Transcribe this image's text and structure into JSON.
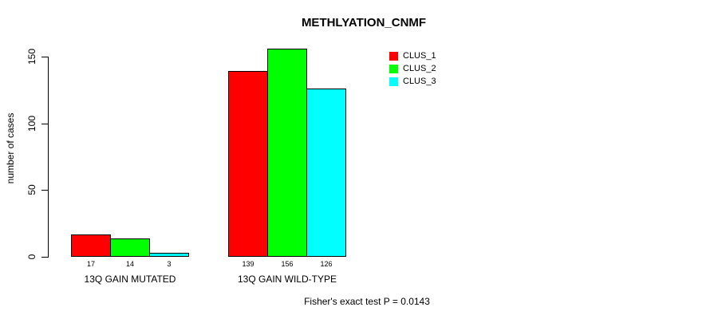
{
  "title": "METHLYATION_CNMF",
  "footnote": "Fisher's exact test P = 0.0143",
  "chart_data": {
    "type": "bar",
    "title": "METHLYATION_CNMF",
    "xlabel": "",
    "ylabel": "number of cases",
    "categories": [
      "13Q GAIN MUTATED",
      "13Q GAIN WILD-TYPE"
    ],
    "series": [
      {
        "name": "CLUS_1",
        "color": "#FF0000",
        "values": [
          17,
          139
        ]
      },
      {
        "name": "CLUS_2",
        "color": "#00FF00",
        "values": [
          14,
          156
        ]
      },
      {
        "name": "CLUS_3",
        "color": "#00FFFF",
        "values": [
          3,
          126
        ]
      }
    ],
    "yticks": [
      0,
      50,
      100,
      150
    ],
    "ylim": [
      0,
      150
    ],
    "grid": false,
    "bar_value_labels_shown": true,
    "legend_position": "top-right",
    "annotation": "Fisher's exact test P = 0.0143",
    "axis_color": "#000000",
    "bar_border_color": "#000000"
  }
}
